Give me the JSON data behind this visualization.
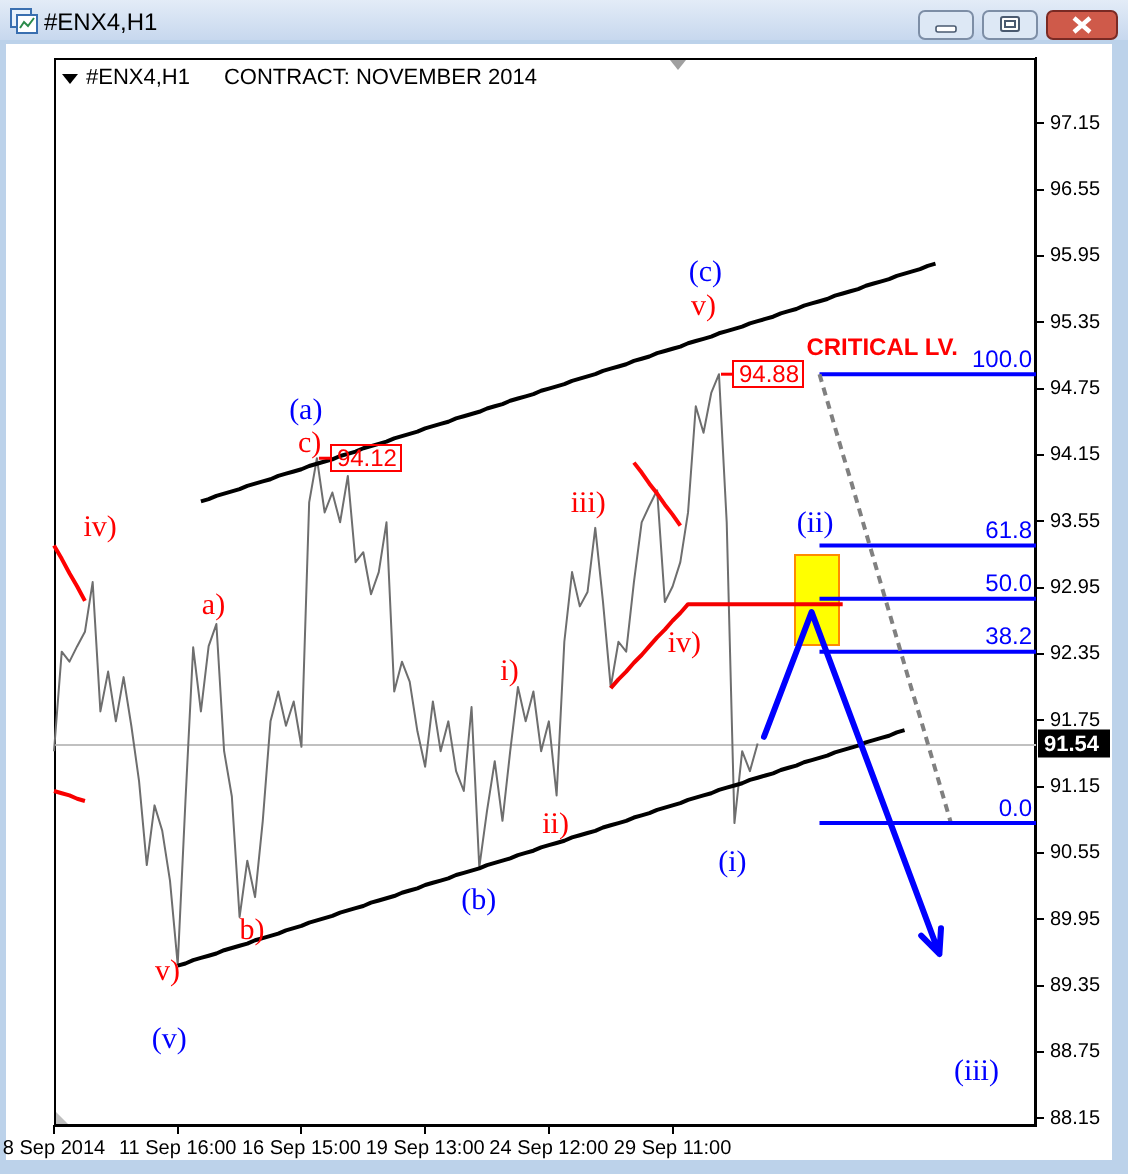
{
  "chart_data": {
    "type": "line",
    "title": "#ENX4,H1",
    "subtitle": "CONTRACT: NOVEMBER 2014",
    "categories": [
      "8 Sep 2014",
      null,
      null,
      null,
      null,
      null,
      null,
      null,
      null,
      null,
      null,
      null,
      null,
      null,
      null,
      null,
      "11 Sep 16:00",
      null,
      null,
      null,
      null,
      null,
      null,
      null,
      null,
      null,
      null,
      null,
      null,
      null,
      null,
      null,
      "16 Sep 15:00",
      null,
      null,
      null,
      null,
      null,
      null,
      null,
      null,
      null,
      null,
      null,
      null,
      null,
      null,
      null,
      "19 Sep 13:00",
      null,
      null,
      null,
      null,
      null,
      null,
      null,
      null,
      null,
      null,
      null,
      null,
      null,
      null,
      null,
      "24 Sep 12:00",
      null,
      null,
      null,
      null,
      null,
      null,
      null,
      null,
      null,
      null,
      null,
      null,
      null,
      null,
      null,
      "29 Sep 11:00",
      null,
      null,
      null,
      null,
      null,
      null,
      null,
      null,
      null,
      null,
      null,
      null,
      null,
      null,
      null,
      null,
      null,
      null,
      null,
      null,
      null,
      null,
      null,
      null,
      null,
      null,
      null,
      null,
      null,
      null,
      null,
      null,
      null,
      null,
      null,
      null,
      null,
      null,
      null,
      null,
      null,
      null,
      null,
      null,
      null,
      null,
      null
    ],
    "ylim": [
      88.08,
      97.74
    ],
    "yticks": [
      88.15,
      88.75,
      89.35,
      89.95,
      90.55,
      91.15,
      91.75,
      92.35,
      92.95,
      93.55,
      94.15,
      94.75,
      95.35,
      95.95,
      96.55,
      97.15
    ],
    "marker": "none",
    "series": [
      {
        "color": "#6e6e6e",
        "values": [
          91.47,
          92.37,
          92.28,
          92.42,
          92.55,
          93.0,
          91.83,
          92.19,
          91.74,
          92.14,
          91.7,
          91.2,
          90.44,
          90.98,
          90.75,
          90.3,
          89.54,
          91.02,
          92.41,
          91.83,
          92.42,
          92.62,
          91.47,
          91.06,
          89.97,
          90.48,
          90.15,
          90.84,
          91.74,
          92.01,
          91.7,
          91.92,
          91.51,
          93.72,
          94.12,
          93.63,
          93.81,
          93.54,
          93.96,
          93.18,
          93.27,
          92.89,
          93.09,
          93.54,
          92.01,
          92.28,
          92.1,
          91.65,
          91.33,
          91.92,
          91.47,
          91.74,
          91.29,
          91.11,
          91.87,
          90.42,
          90.93,
          91.38,
          90.84,
          91.47,
          92.05,
          91.74,
          92.01,
          91.47,
          91.74,
          91.07,
          92.46,
          93.09,
          92.78,
          92.91,
          93.49,
          92.82,
          92.05,
          92.46,
          92.37,
          93.0,
          93.54,
          93.69,
          93.83,
          92.82,
          92.96,
          93.18,
          93.63,
          94.59,
          94.35,
          94.71,
          94.88,
          93.54,
          90.82,
          91.47,
          91.29,
          91.54,
          null,
          null,
          null,
          null,
          null,
          null,
          null,
          null,
          null,
          null,
          null,
          null,
          null,
          null,
          null,
          null,
          null,
          null,
          null,
          null,
          null,
          null,
          null,
          null,
          null,
          null,
          null,
          null,
          null,
          null,
          null,
          null,
          null,
          null,
          null,
          null
        ],
        "value_labels": [
          null,
          null,
          null,
          null,
          null,
          null,
          null,
          null,
          null,
          null,
          null,
          null,
          null,
          null,
          null,
          null,
          null,
          null,
          null,
          null,
          null,
          null,
          null,
          null,
          null,
          null,
          null,
          null,
          null,
          null,
          null,
          null,
          null,
          null,
          "94.12",
          null,
          null,
          null,
          null,
          null,
          null,
          null,
          null,
          null,
          null,
          null,
          null,
          null,
          null,
          null,
          null,
          null,
          null,
          null,
          null,
          null,
          null,
          null,
          null,
          null,
          null,
          null,
          null,
          null,
          null,
          null,
          null,
          null,
          null,
          null,
          null,
          null,
          null,
          null,
          null,
          null,
          null,
          null,
          null,
          null,
          null,
          null,
          null,
          null,
          null,
          null,
          "94.88",
          null,
          null,
          null,
          null,
          null,
          null,
          null,
          null,
          null,
          null,
          null,
          null,
          null,
          null,
          null,
          null,
          null,
          null,
          null,
          null,
          null,
          null,
          null,
          null,
          null,
          null,
          null,
          null,
          null,
          null,
          null,
          null,
          null,
          null,
          null,
          null,
          null,
          null,
          null,
          null,
          null
        ]
      },
      {
        "color": "#000000",
        "values": [
          null,
          null,
          null,
          null,
          null,
          null,
          null,
          null,
          null,
          null,
          null,
          null,
          null,
          null,
          null,
          null,
          null,
          null,
          null,
          93.73,
          93.75,
          93.78,
          93.8,
          93.82,
          93.84,
          93.87,
          93.89,
          93.91,
          93.93,
          93.96,
          93.98,
          94.0,
          94.02,
          94.05,
          94.07,
          94.09,
          94.11,
          94.14,
          94.16,
          94.18,
          94.21,
          94.23,
          94.25,
          94.27,
          94.3,
          94.32,
          94.34,
          94.36,
          94.39,
          94.41,
          94.43,
          94.45,
          94.48,
          94.5,
          94.52,
          94.54,
          94.57,
          94.59,
          94.61,
          94.64,
          94.66,
          94.68,
          94.7,
          94.73,
          94.75,
          94.77,
          94.79,
          94.82,
          94.84,
          94.86,
          94.88,
          94.91,
          94.93,
          94.95,
          94.97,
          95.0,
          95.02,
          95.04,
          95.07,
          95.09,
          95.11,
          95.13,
          95.16,
          95.18,
          95.2,
          95.22,
          95.25,
          95.27,
          95.29,
          95.31,
          95.34,
          95.36,
          95.38,
          95.4,
          95.43,
          95.45,
          95.47,
          95.5,
          95.52,
          95.54,
          95.56,
          95.59,
          95.61,
          95.63,
          95.65,
          95.68,
          95.7,
          95.72,
          95.74,
          95.77,
          95.79,
          95.81,
          95.83,
          95.86,
          95.88,
          null,
          null,
          null,
          null,
          null,
          null,
          null,
          null,
          null,
          null,
          null,
          null,
          null
        ]
      },
      {
        "color": "#000000",
        "values": [
          null,
          null,
          null,
          null,
          null,
          null,
          null,
          null,
          null,
          null,
          null,
          null,
          null,
          null,
          null,
          null,
          89.53,
          89.55,
          89.58,
          89.6,
          89.62,
          89.64,
          89.67,
          89.69,
          89.71,
          89.73,
          89.76,
          89.78,
          89.8,
          89.82,
          89.85,
          89.87,
          89.89,
          89.92,
          89.94,
          89.96,
          89.98,
          90.01,
          90.03,
          90.05,
          90.07,
          90.1,
          90.12,
          90.14,
          90.16,
          90.19,
          90.21,
          90.23,
          90.26,
          90.28,
          90.3,
          90.32,
          90.35,
          90.37,
          90.39,
          90.41,
          90.44,
          90.46,
          90.48,
          90.5,
          90.53,
          90.55,
          90.57,
          90.6,
          90.62,
          90.64,
          90.66,
          90.69,
          90.71,
          90.73,
          90.75,
          90.78,
          90.8,
          90.82,
          90.84,
          90.87,
          90.89,
          90.91,
          90.94,
          90.96,
          90.98,
          91.0,
          91.03,
          91.05,
          91.07,
          91.09,
          91.12,
          91.14,
          91.16,
          91.18,
          91.21,
          91.23,
          91.25,
          91.27,
          91.3,
          91.32,
          91.34,
          91.37,
          91.39,
          91.41,
          91.43,
          91.46,
          91.48,
          91.5,
          91.52,
          91.55,
          91.57,
          91.59,
          91.61,
          91.64,
          91.66,
          null,
          null,
          null,
          null,
          null,
          null,
          null,
          null,
          null,
          null,
          null,
          null,
          null,
          null,
          null,
          null,
          null
        ]
      },
      {
        "color": "#ff0000",
        "values": [
          93.33,
          93.21,
          93.08,
          92.96,
          92.83,
          null,
          null,
          null,
          null,
          null,
          null,
          null,
          null,
          null,
          null,
          null,
          null,
          null,
          null,
          null,
          null,
          null,
          null,
          null,
          null,
          null,
          null,
          null,
          null,
          null,
          null,
          null,
          null,
          null,
          null,
          null,
          null,
          null,
          null,
          null,
          null,
          null,
          null,
          null,
          null,
          null,
          null,
          null,
          null,
          null,
          null,
          null,
          null,
          null,
          null,
          null,
          null,
          null,
          null,
          null,
          null,
          null,
          null,
          null,
          null,
          null,
          null,
          null,
          null,
          null,
          null,
          null,
          null,
          null,
          null,
          null,
          null,
          null,
          null,
          null,
          null,
          null,
          null,
          null,
          null,
          null,
          null,
          null,
          null,
          null,
          null,
          null,
          null,
          null,
          null,
          null,
          null,
          null,
          null,
          null,
          null,
          null,
          null,
          null,
          null,
          null,
          null,
          null,
          null,
          null,
          null,
          null,
          null,
          null,
          null,
          null,
          null,
          null,
          null,
          null,
          null,
          null,
          null,
          null,
          null,
          null,
          null,
          null
        ]
      },
      {
        "color": "#f80000",
        "values": [
          91.11,
          91.09,
          91.07,
          91.04,
          91.02,
          null,
          null,
          null,
          null,
          null,
          null,
          null,
          null,
          null,
          null,
          null,
          null,
          null,
          null,
          null,
          null,
          null,
          null,
          null,
          null,
          null,
          null,
          null,
          null,
          null,
          null,
          null,
          null,
          null,
          null,
          null,
          null,
          null,
          null,
          null,
          null,
          null,
          null,
          null,
          null,
          null,
          null,
          null,
          null,
          null,
          null,
          null,
          null,
          null,
          null,
          null,
          null,
          null,
          null,
          null,
          null,
          null,
          null,
          null,
          null,
          null,
          null,
          null,
          null,
          null,
          null,
          null,
          null,
          null,
          null,
          null,
          null,
          null,
          null,
          null,
          null,
          null,
          null,
          null,
          null,
          null,
          null,
          null,
          null,
          null,
          null,
          null,
          null,
          null,
          null,
          null,
          null,
          null,
          null,
          null,
          null,
          null,
          null,
          null,
          null,
          null,
          null,
          null,
          null,
          null,
          null,
          null,
          null,
          null,
          null,
          null,
          null,
          null,
          null,
          null,
          null,
          null,
          null,
          null,
          null,
          null,
          null,
          null
        ]
      },
      {
        "color": "#ff0606",
        "values": [
          null,
          null,
          null,
          null,
          null,
          null,
          null,
          null,
          null,
          null,
          null,
          null,
          null,
          null,
          null,
          null,
          null,
          null,
          null,
          null,
          null,
          null,
          null,
          null,
          null,
          null,
          null,
          null,
          null,
          null,
          null,
          null,
          null,
          null,
          null,
          null,
          null,
          null,
          null,
          null,
          null,
          null,
          null,
          null,
          null,
          null,
          null,
          null,
          null,
          null,
          null,
          null,
          null,
          null,
          null,
          null,
          null,
          null,
          null,
          null,
          null,
          null,
          null,
          null,
          null,
          null,
          null,
          null,
          null,
          null,
          null,
          null,
          null,
          null,
          null,
          94.08,
          93.99,
          93.89,
          93.8,
          93.7,
          93.61,
          93.51,
          null,
          null,
          null,
          null,
          null,
          null,
          null,
          null,
          null,
          null,
          null,
          null,
          null,
          null,
          null,
          null,
          null,
          null,
          null,
          null,
          null,
          null,
          null,
          null,
          null,
          null,
          null,
          null,
          null,
          null,
          null,
          null,
          null,
          null,
          null,
          null,
          null,
          null,
          null,
          null,
          null,
          null,
          null,
          null,
          null,
          null
        ]
      },
      {
        "color": "#f40000",
        "values": [
          null,
          null,
          null,
          null,
          null,
          null,
          null,
          null,
          null,
          null,
          null,
          null,
          null,
          null,
          null,
          null,
          null,
          null,
          null,
          null,
          null,
          null,
          null,
          null,
          null,
          null,
          null,
          null,
          null,
          null,
          null,
          null,
          null,
          null,
          null,
          null,
          null,
          null,
          null,
          null,
          null,
          null,
          null,
          null,
          null,
          null,
          null,
          null,
          null,
          null,
          null,
          null,
          null,
          null,
          null,
          null,
          null,
          null,
          null,
          null,
          null,
          null,
          null,
          null,
          null,
          null,
          null,
          null,
          null,
          null,
          null,
          null,
          92.04,
          92.12,
          92.19,
          92.27,
          92.34,
          92.42,
          92.5,
          92.57,
          92.65,
          92.72,
          92.8,
          92.8,
          92.8,
          92.8,
          92.8,
          92.8,
          92.8,
          92.8,
          92.8,
          92.8,
          92.8,
          92.8,
          92.8,
          92.8,
          92.8,
          92.8,
          92.8,
          92.8,
          92.8,
          92.8,
          92.8,
          null,
          null,
          null,
          null,
          null,
          null,
          null,
          null,
          null,
          null,
          null,
          null,
          null,
          null,
          null,
          null,
          null,
          null,
          null,
          null,
          null,
          null,
          null,
          null,
          null
        ]
      },
      {
        "name": "100.0",
        "color": "#0000ff",
        "values": [
          null,
          null,
          null,
          null,
          null,
          null,
          null,
          null,
          null,
          null,
          null,
          null,
          null,
          null,
          null,
          null,
          null,
          null,
          null,
          null,
          null,
          null,
          null,
          null,
          null,
          null,
          null,
          null,
          null,
          null,
          null,
          null,
          null,
          null,
          null,
          null,
          null,
          null,
          null,
          null,
          null,
          null,
          null,
          null,
          null,
          null,
          null,
          null,
          null,
          null,
          null,
          null,
          null,
          null,
          null,
          null,
          null,
          null,
          null,
          null,
          null,
          null,
          null,
          null,
          null,
          null,
          null,
          null,
          null,
          null,
          null,
          null,
          null,
          null,
          null,
          null,
          null,
          null,
          null,
          null,
          null,
          null,
          null,
          null,
          null,
          null,
          null,
          null,
          null,
          null,
          null,
          null,
          null,
          null,
          null,
          null,
          null,
          null,
          null,
          94.88,
          94.88,
          94.88,
          94.88,
          94.88,
          94.88,
          94.88,
          94.88,
          94.88,
          94.88,
          94.88,
          94.88,
          94.88,
          94.88,
          94.88,
          94.88,
          94.88,
          94.88,
          94.88,
          94.88,
          94.88,
          94.88,
          94.88,
          94.88,
          94.88,
          94.88,
          94.88,
          94.88,
          94.88
        ]
      },
      {
        "name": "61.8",
        "color": "#0000ff",
        "values": [
          null,
          null,
          null,
          null,
          null,
          null,
          null,
          null,
          null,
          null,
          null,
          null,
          null,
          null,
          null,
          null,
          null,
          null,
          null,
          null,
          null,
          null,
          null,
          null,
          null,
          null,
          null,
          null,
          null,
          null,
          null,
          null,
          null,
          null,
          null,
          null,
          null,
          null,
          null,
          null,
          null,
          null,
          null,
          null,
          null,
          null,
          null,
          null,
          null,
          null,
          null,
          null,
          null,
          null,
          null,
          null,
          null,
          null,
          null,
          null,
          null,
          null,
          null,
          null,
          null,
          null,
          null,
          null,
          null,
          null,
          null,
          null,
          null,
          null,
          null,
          null,
          null,
          null,
          null,
          null,
          null,
          null,
          null,
          null,
          null,
          null,
          null,
          null,
          null,
          null,
          null,
          null,
          null,
          null,
          null,
          null,
          null,
          null,
          null,
          93.33,
          93.33,
          93.33,
          93.33,
          93.33,
          93.33,
          93.33,
          93.33,
          93.33,
          93.33,
          93.33,
          93.33,
          93.33,
          93.33,
          93.33,
          93.33,
          93.33,
          93.33,
          93.33,
          93.33,
          93.33,
          93.33,
          93.33,
          93.33,
          93.33,
          93.33,
          93.33,
          93.33,
          93.33
        ]
      },
      {
        "name": "50.0",
        "color": "#0000ff",
        "values": [
          null,
          null,
          null,
          null,
          null,
          null,
          null,
          null,
          null,
          null,
          null,
          null,
          null,
          null,
          null,
          null,
          null,
          null,
          null,
          null,
          null,
          null,
          null,
          null,
          null,
          null,
          null,
          null,
          null,
          null,
          null,
          null,
          null,
          null,
          null,
          null,
          null,
          null,
          null,
          null,
          null,
          null,
          null,
          null,
          null,
          null,
          null,
          null,
          null,
          null,
          null,
          null,
          null,
          null,
          null,
          null,
          null,
          null,
          null,
          null,
          null,
          null,
          null,
          null,
          null,
          null,
          null,
          null,
          null,
          null,
          null,
          null,
          null,
          null,
          null,
          null,
          null,
          null,
          null,
          null,
          null,
          null,
          null,
          null,
          null,
          null,
          null,
          null,
          null,
          null,
          null,
          null,
          null,
          null,
          null,
          null,
          null,
          null,
          null,
          92.85,
          92.85,
          92.85,
          92.85,
          92.85,
          92.85,
          92.85,
          92.85,
          92.85,
          92.85,
          92.85,
          92.85,
          92.85,
          92.85,
          92.85,
          92.85,
          92.85,
          92.85,
          92.85,
          92.85,
          92.85,
          92.85,
          92.85,
          92.85,
          92.85,
          92.85,
          92.85,
          92.85,
          92.85
        ]
      },
      {
        "name": "38.2",
        "color": "#0000ff",
        "values": [
          null,
          null,
          null,
          null,
          null,
          null,
          null,
          null,
          null,
          null,
          null,
          null,
          null,
          null,
          null,
          null,
          null,
          null,
          null,
          null,
          null,
          null,
          null,
          null,
          null,
          null,
          null,
          null,
          null,
          null,
          null,
          null,
          null,
          null,
          null,
          null,
          null,
          null,
          null,
          null,
          null,
          null,
          null,
          null,
          null,
          null,
          null,
          null,
          null,
          null,
          null,
          null,
          null,
          null,
          null,
          null,
          null,
          null,
          null,
          null,
          null,
          null,
          null,
          null,
          null,
          null,
          null,
          null,
          null,
          null,
          null,
          null,
          null,
          null,
          null,
          null,
          null,
          null,
          null,
          null,
          null,
          null,
          null,
          null,
          null,
          null,
          null,
          null,
          null,
          null,
          null,
          null,
          null,
          null,
          null,
          null,
          null,
          null,
          null,
          92.37,
          92.37,
          92.37,
          92.37,
          92.37,
          92.37,
          92.37,
          92.37,
          92.37,
          92.37,
          92.37,
          92.37,
          92.37,
          92.37,
          92.37,
          92.37,
          92.37,
          92.37,
          92.37,
          92.37,
          92.37,
          92.37,
          92.37,
          92.37,
          92.37,
          92.37,
          92.37,
          92.37,
          92.37
        ]
      },
      {
        "name": "0.0",
        "color": "#0000ff",
        "values": [
          null,
          null,
          null,
          null,
          null,
          null,
          null,
          null,
          null,
          null,
          null,
          null,
          null,
          null,
          null,
          null,
          null,
          null,
          null,
          null,
          null,
          null,
          null,
          null,
          null,
          null,
          null,
          null,
          null,
          null,
          null,
          null,
          null,
          null,
          null,
          null,
          null,
          null,
          null,
          null,
          null,
          null,
          null,
          null,
          null,
          null,
          null,
          null,
          null,
          null,
          null,
          null,
          null,
          null,
          null,
          null,
          null,
          null,
          null,
          null,
          null,
          null,
          null,
          null,
          null,
          null,
          null,
          null,
          null,
          null,
          null,
          null,
          null,
          null,
          null,
          null,
          null,
          null,
          null,
          null,
          null,
          null,
          null,
          null,
          null,
          null,
          null,
          null,
          null,
          null,
          null,
          null,
          null,
          null,
          null,
          null,
          null,
          null,
          null,
          90.82,
          90.82,
          90.82,
          90.82,
          90.82,
          90.82,
          90.82,
          90.82,
          90.82,
          90.82,
          90.82,
          90.82,
          90.82,
          90.82,
          90.82,
          90.82,
          90.82,
          90.82,
          90.82,
          90.82,
          90.82,
          90.82,
          90.82,
          90.82,
          90.82,
          90.82,
          90.82,
          90.82,
          90.82
        ]
      },
      {
        "color": "#808080",
        "line_style": "dashed",
        "values": [
          null,
          null,
          null,
          null,
          null,
          null,
          null,
          null,
          null,
          null,
          null,
          null,
          null,
          null,
          null,
          null,
          null,
          null,
          null,
          null,
          null,
          null,
          null,
          null,
          null,
          null,
          null,
          null,
          null,
          null,
          null,
          null,
          null,
          null,
          null,
          null,
          null,
          null,
          null,
          null,
          null,
          null,
          null,
          null,
          null,
          null,
          null,
          null,
          null,
          null,
          null,
          null,
          null,
          null,
          null,
          null,
          null,
          null,
          null,
          null,
          null,
          null,
          null,
          null,
          null,
          null,
          null,
          null,
          null,
          null,
          null,
          null,
          null,
          null,
          null,
          null,
          null,
          null,
          null,
          null,
          null,
          null,
          null,
          null,
          null,
          null,
          null,
          null,
          null,
          null,
          null,
          null,
          null,
          null,
          null,
          null,
          null,
          null,
          null,
          94.88,
          94.64,
          94.4,
          94.16,
          93.93,
          93.69,
          93.45,
          93.21,
          92.97,
          92.73,
          92.49,
          92.25,
          92.01,
          91.78,
          91.54,
          91.3,
          91.06,
          90.82,
          null,
          null,
          null,
          null,
          null,
          null,
          null,
          null,
          null,
          null,
          null
        ]
      }
    ],
    "ref_lines": [
      {
        "axis": "y",
        "value": 91.54,
        "label": "91.54",
        "color": "#c0c0c0"
      }
    ],
    "annotations": [
      "iv)",
      "a)",
      "v)",
      "(v)",
      "b)",
      "c)",
      "(a)",
      "(b)",
      "i)",
      "ii)",
      "iii)",
      "iv)",
      "v)",
      "(c)",
      "(i)",
      "CRITICAL LV.",
      "(ii)",
      "(iii)"
    ]
  }
}
